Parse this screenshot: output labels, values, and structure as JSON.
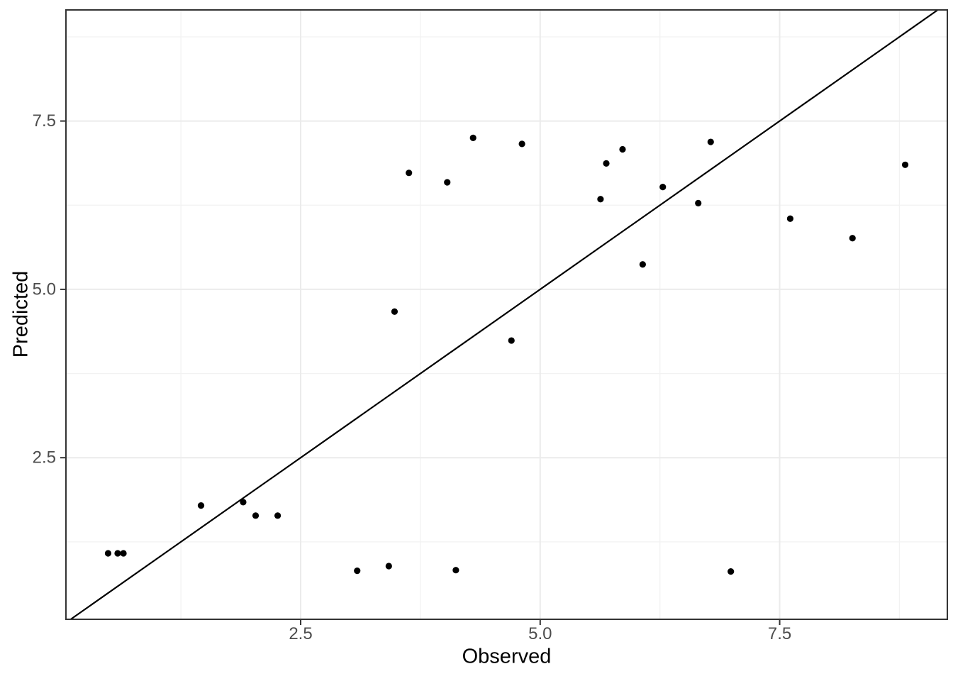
{
  "chart_data": {
    "type": "scatter",
    "title": "",
    "xlabel": "Observed",
    "ylabel": "Predicted",
    "xlim": [
      0.05,
      9.25
    ],
    "ylim": [
      0.1,
      9.15
    ],
    "x_major_ticks": [
      2.5,
      5.0,
      7.5
    ],
    "y_major_ticks": [
      2.5,
      5.0,
      7.5
    ],
    "x_tick_labels": [
      "2.5",
      "5.0",
      "7.5"
    ],
    "y_tick_labels": [
      "2.5",
      "5.0",
      "7.5"
    ],
    "x_minor_gridlines": [
      1.25,
      3.75,
      6.25,
      8.75
    ],
    "y_minor_gridlines": [
      1.25,
      3.75,
      6.25,
      8.75
    ],
    "grid": "on",
    "legend": "none",
    "reference_line": {
      "kind": "identity",
      "slope": 1,
      "intercept": 0
    },
    "points": [
      [
        0.49,
        1.08
      ],
      [
        0.59,
        1.08
      ],
      [
        0.65,
        1.08
      ],
      [
        1.46,
        1.79
      ],
      [
        1.9,
        1.84
      ],
      [
        2.03,
        1.64
      ],
      [
        2.26,
        1.64
      ],
      [
        3.09,
        0.82
      ],
      [
        3.42,
        0.89
      ],
      [
        4.12,
        0.83
      ],
      [
        6.99,
        0.81
      ],
      [
        3.48,
        4.67
      ],
      [
        4.7,
        4.24
      ],
      [
        3.63,
        6.73
      ],
      [
        4.03,
        6.59
      ],
      [
        4.3,
        7.25
      ],
      [
        4.81,
        7.16
      ],
      [
        5.63,
        6.34
      ],
      [
        5.69,
        6.87
      ],
      [
        5.86,
        7.08
      ],
      [
        6.07,
        5.37
      ],
      [
        6.28,
        6.52
      ],
      [
        6.65,
        6.28
      ],
      [
        6.78,
        7.19
      ],
      [
        7.61,
        6.05
      ],
      [
        8.26,
        5.76
      ],
      [
        8.81,
        6.85
      ]
    ],
    "colors": {
      "background": "#FFFFFF",
      "panel_background": "#FFFFFF",
      "panel_border": "#333333",
      "grid_major": "#EBEBEB",
      "grid_minor": "#F2F2F2",
      "tick": "#333333",
      "tick_label": "#4D4D4D",
      "axis_title": "#000000",
      "point": "#000000",
      "reference_line": "#000000"
    }
  }
}
